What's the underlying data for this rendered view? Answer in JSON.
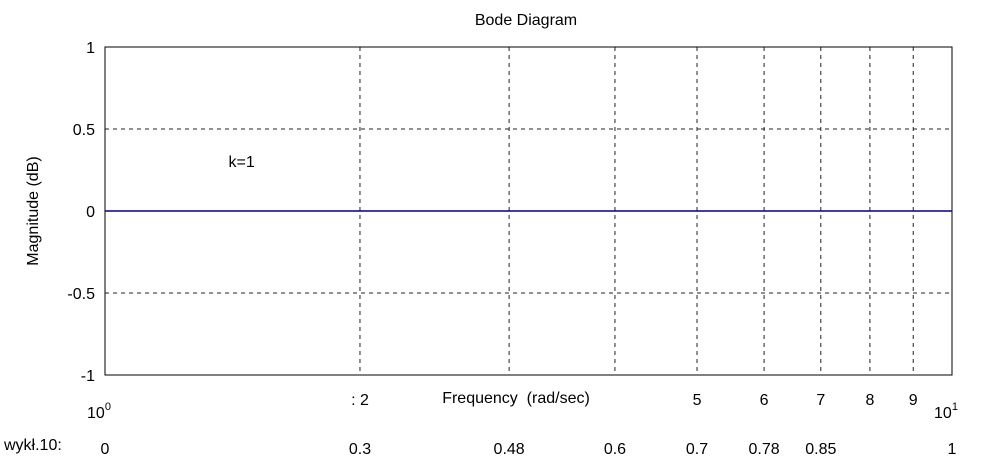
{
  "chart_data": {
    "type": "line",
    "title": "Bode Diagram",
    "xlabel": "Frequency  (rad/sec)",
    "ylabel": "Magnitude (dB)",
    "xscale": "log",
    "xlim": [
      1,
      10
    ],
    "ylim": [
      -1,
      1
    ],
    "grid": true,
    "y_ticks": [
      {
        "value": 1,
        "label": "1"
      },
      {
        "value": 0.5,
        "label": "0.5"
      },
      {
        "value": 0,
        "label": "0"
      },
      {
        "value": -0.5,
        "label": "-0.5"
      },
      {
        "value": -1,
        "label": "-1"
      }
    ],
    "x_decade_ticks": [
      {
        "value": 1,
        "base": "10",
        "exp": "0"
      },
      {
        "value": 10,
        "base": "10",
        "exp": "1"
      }
    ],
    "x_minor_ticks": [
      {
        "value": 2,
        "label": ": 2"
      },
      {
        "value": 3,
        "label": ""
      },
      {
        "value": 4,
        "label": ""
      },
      {
        "value": 5,
        "label": "5"
      },
      {
        "value": 6,
        "label": "6"
      },
      {
        "value": 7,
        "label": "7"
      },
      {
        "value": 8,
        "label": "8"
      },
      {
        "value": 9,
        "label": "9"
      }
    ],
    "exponent_row": {
      "label": "wykł.10:",
      "values": [
        {
          "value": 1,
          "label": "0"
        },
        {
          "value": 2,
          "label": "0.3"
        },
        {
          "value": 3,
          "label": "0.48"
        },
        {
          "value": 4,
          "label": "0.6"
        },
        {
          "value": 5,
          "label": "0.7"
        },
        {
          "value": 6,
          "label": "0.78"
        },
        {
          "value": 7,
          "label": "0.85"
        },
        {
          "value": 10,
          "label": "1"
        }
      ]
    },
    "series": [
      {
        "x": [
          1,
          10
        ],
        "y": [
          0,
          0
        ],
        "color": "#000080"
      }
    ],
    "annotations": [
      {
        "text": "k=1",
        "x": 1.45,
        "y": 0.22
      }
    ]
  }
}
